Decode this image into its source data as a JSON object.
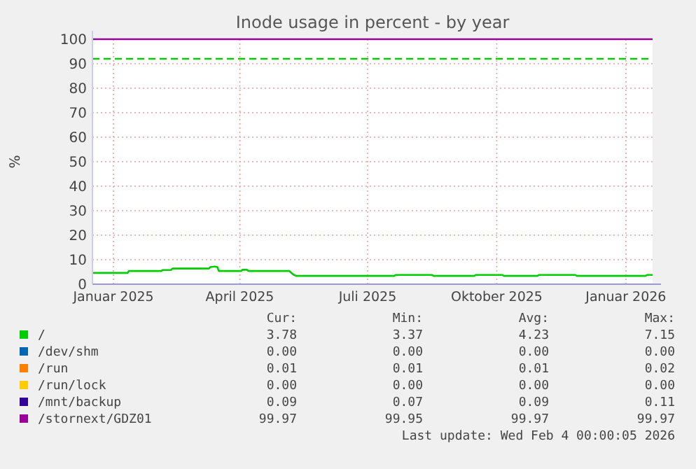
{
  "chart_data": {
    "type": "line",
    "title": "Inode usage in percent - by year",
    "ylabel": "%",
    "xlim": [
      "2024-12-17",
      "2026-01-20"
    ],
    "xticks": [
      {
        "value": "2025-01-01",
        "label": "Januar 2025"
      },
      {
        "value": "2025-04-01",
        "label": "April 2025"
      },
      {
        "value": "2025-07-01",
        "label": "Juli 2025"
      },
      {
        "value": "2025-10-01",
        "label": "Oktober 2025"
      },
      {
        "value": "2026-01-01",
        "label": "Januar 2026"
      }
    ],
    "ylim": [
      0,
      100
    ],
    "yticks": [
      0,
      10,
      20,
      30,
      40,
      50,
      60,
      70,
      80,
      90,
      100
    ],
    "grid": true,
    "legend": "bottom",
    "marker": "none",
    "line_style": "solid",
    "series": [
      {
        "name": "/",
        "color": "#00cc00",
        "x": [
          "2024-12-17",
          "2025-01-11",
          "2025-01-12",
          "2025-02-04",
          "2025-02-05",
          "2025-02-11",
          "2025-02-12",
          "2025-03-10",
          "2025-03-11",
          "2025-03-14",
          "2025-03-16",
          "2025-03-17",
          "2025-04-02",
          "2025-04-03",
          "2025-04-06",
          "2025-04-07",
          "2025-05-06",
          "2025-05-09",
          "2025-05-11",
          "2025-07-20",
          "2025-07-21",
          "2025-08-16",
          "2025-08-17",
          "2025-09-15",
          "2025-09-16",
          "2025-10-05",
          "2025-10-06",
          "2025-10-30",
          "2025-10-31",
          "2025-11-26",
          "2025-11-27",
          "2026-01-15",
          "2026-01-16",
          "2026-01-20"
        ],
        "values": [
          4.6,
          4.6,
          5.4,
          5.4,
          5.8,
          5.8,
          6.4,
          6.4,
          7.0,
          7.2,
          7.0,
          5.4,
          5.4,
          5.9,
          5.9,
          5.4,
          5.4,
          4.0,
          3.4,
          3.4,
          3.8,
          3.8,
          3.4,
          3.4,
          3.8,
          3.8,
          3.4,
          3.4,
          3.8,
          3.8,
          3.4,
          3.4,
          3.8,
          3.8
        ]
      },
      {
        "name": "/dev/shm",
        "color": "#0066b3"
      },
      {
        "name": "/run",
        "color": "#ff8000"
      },
      {
        "name": "/run/lock",
        "color": "#ffcc00"
      },
      {
        "name": "/mnt/backup",
        "color": "#330099"
      },
      {
        "name": "/stornext/GDZ01",
        "color": "#990099",
        "x": [
          "2024-12-17",
          "2026-01-20"
        ],
        "values": [
          100,
          100
        ]
      }
    ],
    "ref_lines": [
      {
        "axis": "y",
        "value": 92,
        "color": "#00cc00",
        "line_style": "dashed"
      }
    ],
    "annotations": [
      "Cur:",
      "Min:",
      "Avg:",
      "Max:",
      "3.78",
      "3.37",
      "4.23",
      "7.15",
      "0.00",
      "0.00",
      "0.00",
      "0.00",
      "0.01",
      "0.01",
      "0.01",
      "0.02",
      "0.00",
      "0.00",
      "0.00",
      "0.00",
      "0.09",
      "0.07",
      "0.09",
      "0.11",
      "99.97",
      "99.95",
      "99.97",
      "99.97",
      "Last update: Wed Feb  4 00:00:05 2026"
    ]
  }
}
